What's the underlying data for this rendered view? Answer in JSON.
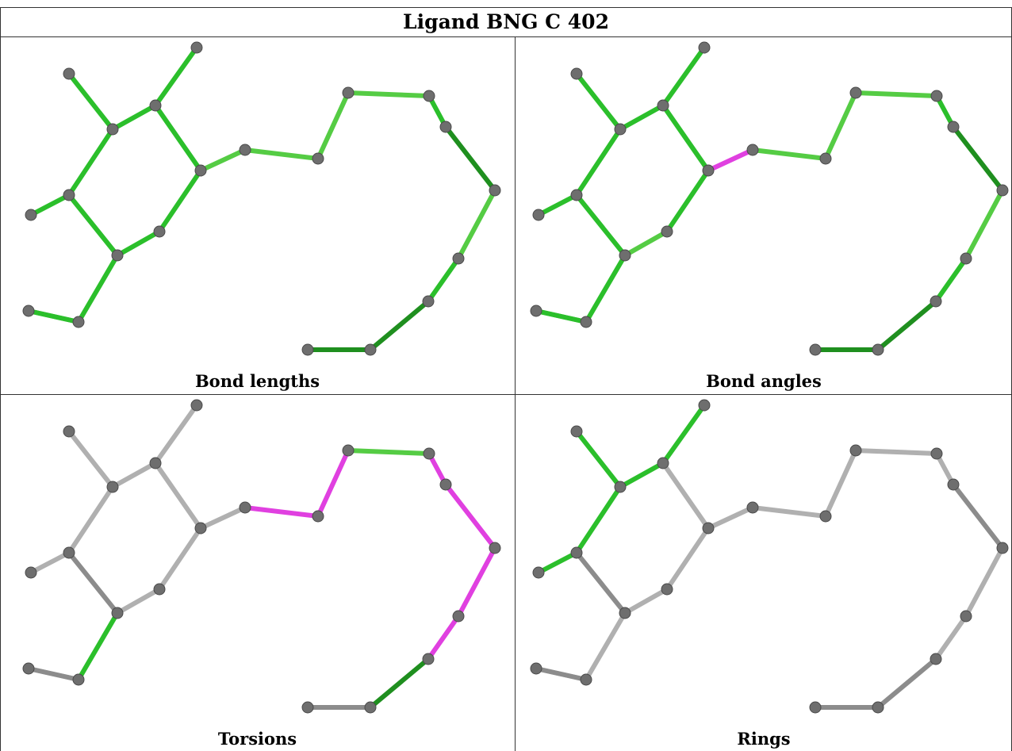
{
  "title": "Ligand BNG C 402",
  "colors": {
    "green": "#2bbf2b",
    "light_green": "#55cc44",
    "dark_green": "#1f8f1f",
    "magenta": "#e040e0",
    "gray": "#b0b0b0",
    "dark_gray": "#8c8c8c",
    "atom": "#6e6e6e"
  },
  "panels": [
    {
      "caption": "Bond lengths",
      "bond_colors": [
        "green",
        "green",
        "green",
        "green",
        "green",
        "green",
        "green",
        "green",
        "green",
        "light_green",
        "light_green",
        "light_green",
        "light_green",
        "green",
        "dark_green",
        "light_green",
        "green",
        "dark_green",
        "light_green",
        "dark_green",
        "green",
        "green",
        "green"
      ]
    },
    {
      "caption": "Bond angles",
      "bond_colors": [
        "green",
        "green",
        "green",
        "green",
        "green",
        "green",
        "light_green",
        "green",
        "green",
        "magenta",
        "light_green",
        "light_green",
        "light_green",
        "green",
        "dark_green",
        "light_green",
        "green",
        "dark_green",
        "light_green",
        "dark_green",
        "green",
        "green",
        "green"
      ]
    },
    {
      "caption": "Torsions",
      "bond_colors": [
        "gray",
        "gray",
        "gray",
        "gray",
        "gray",
        "dark_gray",
        "gray",
        "gray",
        "gray",
        "gray",
        "magenta",
        "magenta",
        "light_green",
        "magenta",
        "magenta",
        "magenta",
        "magenta",
        "dark_green",
        "magenta",
        "dark_gray",
        "green",
        "gray",
        "dark_gray"
      ]
    },
    {
      "caption": "Rings",
      "bond_colors": [
        "green",
        "green",
        "green",
        "green",
        "green",
        "dark_gray",
        "gray",
        "gray",
        "gray",
        "gray",
        "gray",
        "gray",
        "gray",
        "gray",
        "dark_gray",
        "gray",
        "gray",
        "dark_gray",
        "gray",
        "dark_gray",
        "gray",
        "gray",
        "dark_gray"
      ]
    }
  ]
}
